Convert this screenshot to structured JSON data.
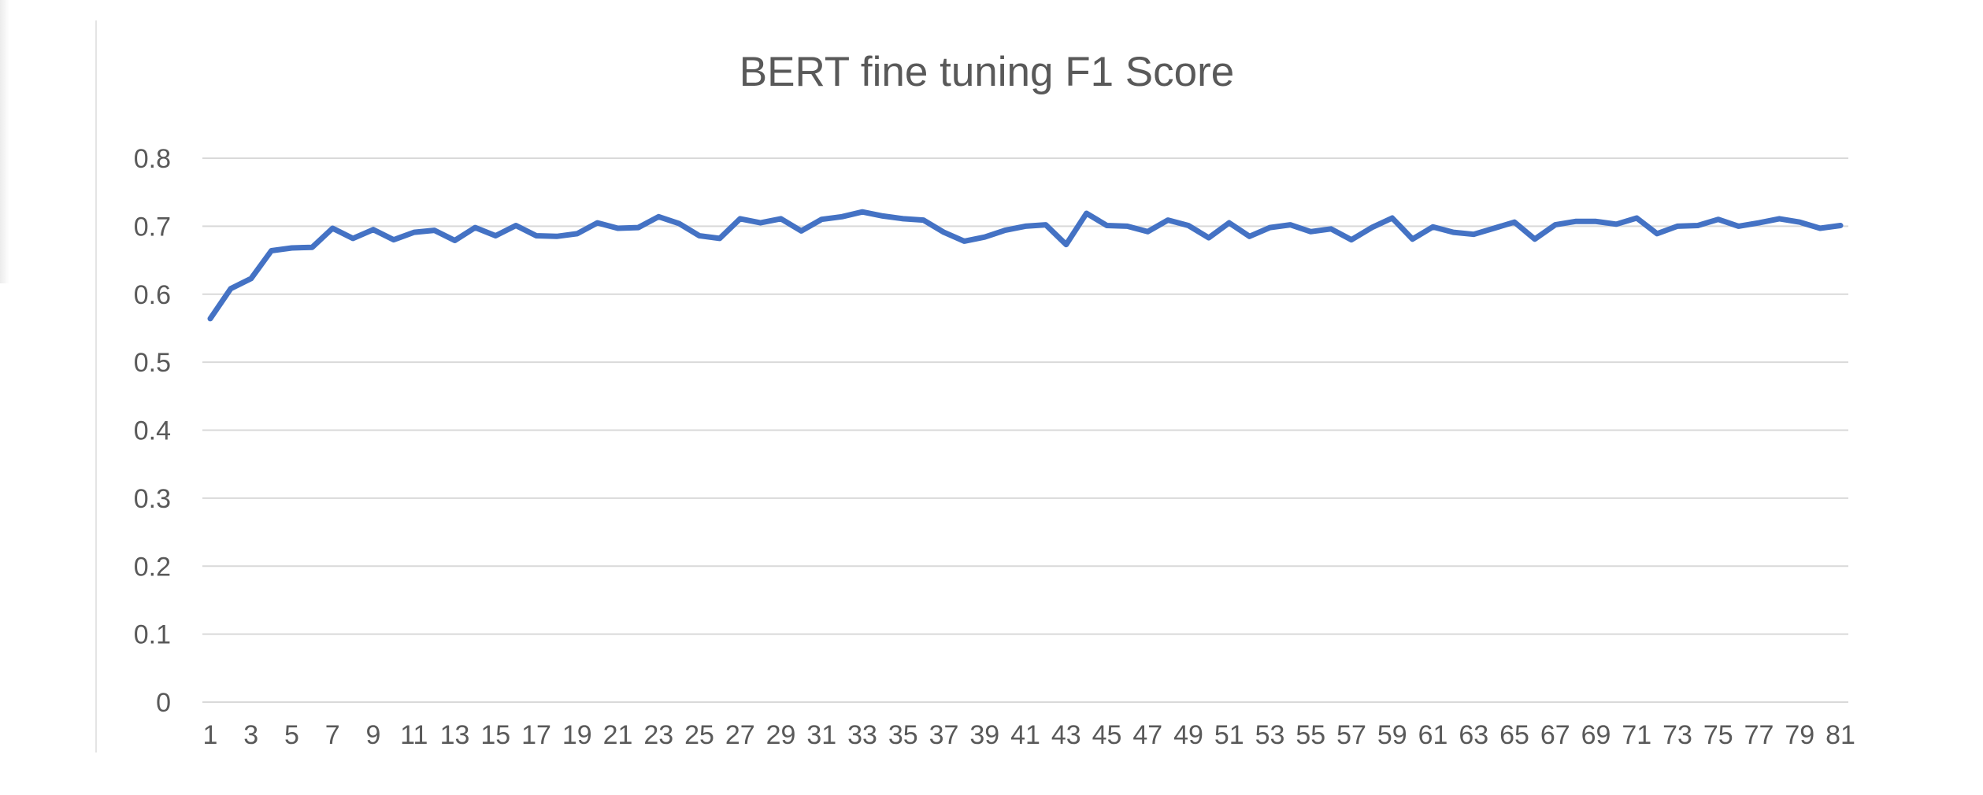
{
  "chart_data": {
    "type": "line",
    "title": "BERT fine tuning F1 Score",
    "xlabel": "",
    "ylabel": "",
    "ylim": [
      0,
      0.8
    ],
    "y_ticks": [
      "0",
      "0.1",
      "0.2",
      "0.3",
      "0.4",
      "0.5",
      "0.6",
      "0.7",
      "0.8"
    ],
    "x_tick_labels": [
      "1",
      "3",
      "5",
      "7",
      "9",
      "11",
      "13",
      "15",
      "17",
      "19",
      "21",
      "23",
      "25",
      "27",
      "29",
      "31",
      "33",
      "35",
      "37",
      "39",
      "41",
      "43",
      "45",
      "47",
      "49",
      "51",
      "53",
      "55",
      "57",
      "59",
      "61",
      "63",
      "65",
      "67",
      "69",
      "71",
      "73",
      "75",
      "77",
      "79",
      "81"
    ],
    "grid": true,
    "legend": "none",
    "color": "#4472C4",
    "x": [
      1,
      2,
      3,
      4,
      5,
      6,
      7,
      8,
      9,
      10,
      11,
      12,
      13,
      14,
      15,
      16,
      17,
      18,
      19,
      20,
      21,
      22,
      23,
      24,
      25,
      26,
      27,
      28,
      29,
      30,
      31,
      32,
      33,
      34,
      35,
      36,
      37,
      38,
      39,
      40,
      41,
      42,
      43,
      44,
      45,
      46,
      47,
      48,
      49,
      50,
      51,
      52,
      53,
      54,
      55,
      56,
      57,
      58,
      59,
      60,
      61,
      62,
      63,
      64,
      65,
      66,
      67,
      68,
      69,
      70,
      71,
      72,
      73,
      74,
      75,
      76,
      77,
      78,
      79,
      80,
      81
    ],
    "series": [
      {
        "values": [
          0.564,
          0.608,
          0.623,
          0.664,
          0.668,
          0.669,
          0.697,
          0.682,
          0.695,
          0.68,
          0.691,
          0.694,
          0.679,
          0.698,
          0.686,
          0.701,
          0.686,
          0.685,
          0.689,
          0.705,
          0.697,
          0.698,
          0.714,
          0.704,
          0.686,
          0.682,
          0.711,
          0.705,
          0.711,
          0.693,
          0.71,
          0.714,
          0.721,
          0.715,
          0.711,
          0.709,
          0.691,
          0.678,
          0.684,
          0.694,
          0.7,
          0.702,
          0.673,
          0.719,
          0.701,
          0.7,
          0.692,
          0.709,
          0.701,
          0.683,
          0.705,
          0.685,
          0.698,
          0.702,
          0.692,
          0.696,
          0.68,
          0.698,
          0.712,
          0.681,
          0.699,
          0.691,
          0.688,
          0.697,
          0.706,
          0.681,
          0.702,
          0.707,
          0.707,
          0.703,
          0.712,
          0.689,
          0.7,
          0.701,
          0.71,
          0.7,
          0.705,
          0.711,
          0.706,
          0.697,
          0.701
        ]
      }
    ]
  }
}
